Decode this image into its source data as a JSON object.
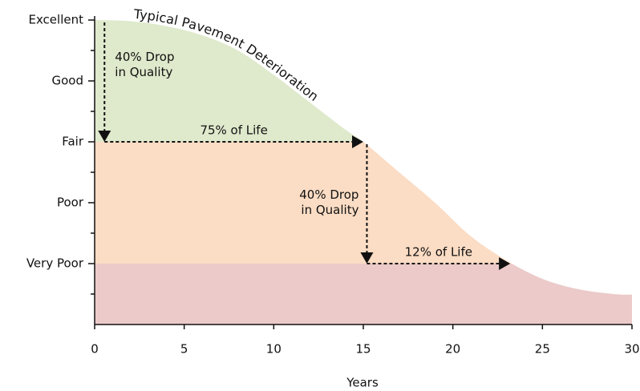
{
  "chart_data": {
    "type": "area",
    "title": "Typical Pavement Deterioration",
    "x_label": "Years",
    "x": [
      0,
      2,
      4,
      6,
      8,
      10,
      12,
      14,
      15,
      17,
      19,
      21,
      23,
      25,
      27,
      29,
      30
    ],
    "values": [
      5,
      4.98,
      4.9,
      4.75,
      4.5,
      4.1,
      3.65,
      3.2,
      3.0,
      2.5,
      2.0,
      1.45,
      1.05,
      0.75,
      0.58,
      0.5,
      0.49
    ],
    "xlim": [
      0,
      30
    ],
    "xticks": [
      0,
      5,
      10,
      15,
      20,
      25,
      30
    ],
    "ylim": [
      0,
      5
    ],
    "yticks": [
      {
        "value": 5,
        "label": "Excellent"
      },
      {
        "value": 4,
        "label": "Good"
      },
      {
        "value": 3,
        "label": "Fair"
      },
      {
        "value": 2,
        "label": "Poor"
      },
      {
        "value": 1,
        "label": "Very Poor"
      }
    ],
    "yminorticks": [
      0.5,
      1.5,
      2.5,
      3.5,
      4.5
    ],
    "zones": [
      {
        "from": 3,
        "to": 5,
        "color": "#dfe9cc"
      },
      {
        "from": 1,
        "to": 3,
        "color": "#fbdcc4"
      },
      {
        "from": 0,
        "to": 1,
        "color": "#eccaca"
      }
    ],
    "annotations": [
      {
        "text": [
          "40% Drop",
          "in Quality"
        ],
        "from": [
          0.55,
          5
        ],
        "to": [
          0.55,
          3
        ]
      },
      {
        "text": [
          "75% of Life"
        ],
        "from": [
          0.55,
          3
        ],
        "to": [
          15,
          3
        ]
      },
      {
        "text": [
          "40% Drop",
          "in Quality"
        ],
        "from": [
          15.2,
          3
        ],
        "to": [
          15.2,
          1
        ]
      },
      {
        "text": [
          "12% of Life"
        ],
        "from": [
          15.2,
          1
        ],
        "to": [
          23.2,
          1
        ]
      }
    ]
  }
}
